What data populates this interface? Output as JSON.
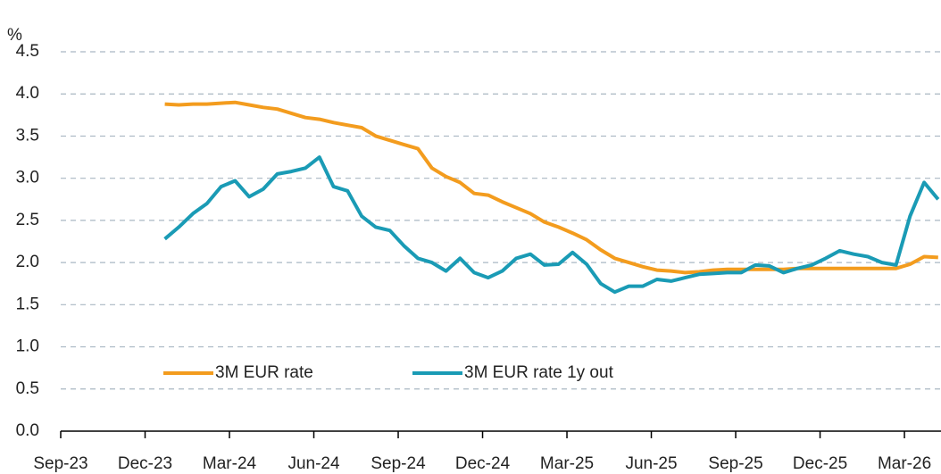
{
  "chart_data": {
    "type": "line",
    "y_label": "%",
    "x": [
      3.7,
      4.2,
      4.7,
      5.2,
      5.7,
      6.2,
      6.7,
      7.2,
      7.7,
      8.2,
      8.7,
      9.2,
      9.7,
      10.2,
      10.7,
      11.2,
      11.7,
      12.2,
      12.7,
      13.2,
      13.7,
      14.2,
      14.7,
      15.2,
      15.7,
      16.2,
      16.7,
      17.2,
      17.7,
      18.2,
      18.7,
      19.2,
      19.7,
      20.2,
      20.7,
      21.2,
      21.7,
      22.2,
      22.7,
      23.2,
      23.7,
      24.2,
      24.7,
      25.2,
      25.7,
      26.2,
      26.7,
      27.2,
      27.7,
      28.2,
      28.7,
      29.2,
      29.7,
      30.2,
      30.7,
      31.2
    ],
    "series": [
      {
        "name": "3M EUR rate",
        "color": "#f39c1e",
        "values": [
          3.88,
          3.87,
          3.88,
          3.88,
          3.89,
          3.9,
          3.87,
          3.84,
          3.82,
          3.77,
          3.72,
          3.7,
          3.66,
          3.63,
          3.6,
          3.5,
          3.45,
          3.4,
          3.35,
          3.12,
          3.02,
          2.95,
          2.82,
          2.8,
          2.72,
          2.65,
          2.58,
          2.48,
          2.42,
          2.35,
          2.27,
          2.15,
          2.05,
          2.0,
          1.95,
          1.91,
          1.9,
          1.88,
          1.89,
          1.91,
          1.92,
          1.92,
          1.92,
          1.92,
          1.92,
          1.93,
          1.93,
          1.93,
          1.93,
          1.93,
          1.93,
          1.93,
          1.93,
          1.98,
          2.07,
          2.06
        ]
      },
      {
        "name": "3M EUR rate 1y out",
        "color": "#1a9bb5",
        "values": [
          2.28,
          2.42,
          2.58,
          2.7,
          2.9,
          2.97,
          2.78,
          2.87,
          3.05,
          3.08,
          3.12,
          3.25,
          2.9,
          2.85,
          2.55,
          2.42,
          2.38,
          2.2,
          2.05,
          2.0,
          1.9,
          2.05,
          1.88,
          1.82,
          1.9,
          2.05,
          2.1,
          1.97,
          1.98,
          2.12,
          1.98,
          1.75,
          1.65,
          1.72,
          1.72,
          1.8,
          1.78,
          1.82,
          1.86,
          1.87,
          1.88,
          1.88,
          1.97,
          1.96,
          1.88,
          1.93,
          1.97,
          2.05,
          2.14,
          2.1,
          2.07,
          2.0,
          1.97,
          2.55,
          2.95,
          2.75
        ]
      }
    ],
    "xlim": [
      0,
      31.3
    ],
    "xticks": [
      {
        "value": 0,
        "label": "Sep-23"
      },
      {
        "value": 3,
        "label": "Dec-23"
      },
      {
        "value": 6,
        "label": "Mar-24"
      },
      {
        "value": 9,
        "label": "Jun-24"
      },
      {
        "value": 12,
        "label": "Sep-24"
      },
      {
        "value": 15,
        "label": "Dec-24"
      },
      {
        "value": 18,
        "label": "Mar-25"
      },
      {
        "value": 21,
        "label": "Jun-25"
      },
      {
        "value": 24,
        "label": "Sep-25"
      },
      {
        "value": 27,
        "label": "Dec-25"
      },
      {
        "value": 30,
        "label": "Mar-26"
      }
    ],
    "ylim": [
      0,
      4.5
    ],
    "yticks": [
      {
        "value": 0,
        "label": "0.0"
      },
      {
        "value": 0.5,
        "label": "0.5"
      },
      {
        "value": 1,
        "label": "1.0"
      },
      {
        "value": 1.5,
        "label": "1.5"
      },
      {
        "value": 2,
        "label": "2.0"
      },
      {
        "value": 2.5,
        "label": "2.5"
      },
      {
        "value": 3,
        "label": "3.0"
      },
      {
        "value": 3.5,
        "label": "3.5"
      },
      {
        "value": 4,
        "label": "4.0"
      },
      {
        "value": 4.5,
        "label": "4.5"
      }
    ],
    "grid": true,
    "legend": "lower left"
  }
}
